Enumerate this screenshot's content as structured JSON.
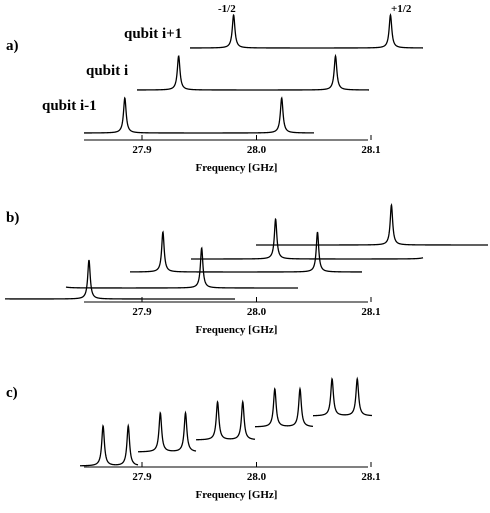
{
  "chart_data": [
    {
      "panel_label": "a)",
      "type": "line",
      "xlabel": "Frequency [GHz]",
      "xticks": [
        "27.9",
        "28.0",
        "28.1"
      ],
      "annotations": [
        "-1/2",
        "+1/2"
      ],
      "series": [
        {
          "name": "qubit i-1",
          "peaks_GHz": [
            27.885,
            28.022
          ]
        },
        {
          "name": "qubit i",
          "peaks_GHz": [
            27.932,
            28.069
          ]
        },
        {
          "name": "qubit i+1",
          "peaks_GHz": [
            27.98,
            28.117
          ]
        }
      ]
    },
    {
      "panel_label": "b)",
      "type": "line",
      "xlabel": "Frequency [GHz]",
      "xticks": [
        "27.9",
        "28.0",
        "28.1"
      ],
      "series": [
        {
          "peaks_GHz": [
            27.855,
            27.955
          ]
        },
        {
          "peaks_GHz": [
            27.881,
            28.008
          ]
        },
        {
          "peaks_GHz": [
            27.927,
            28.062
          ]
        },
        {
          "peaks_GHz": [
            27.98,
            28.116
          ]
        },
        {
          "peaks_GHz": [
            28.034,
            28.171
          ]
        }
      ]
    },
    {
      "panel_label": "c)",
      "type": "line",
      "xlabel": "Frequency [GHz]",
      "xticks": [
        "27.9",
        "28.0",
        "28.1"
      ],
      "series": [
        {
          "peaks_GHz": [
            27.866,
            27.888
          ]
        },
        {
          "peaks_GHz": [
            27.916,
            27.938
          ]
        },
        {
          "peaks_GHz": [
            27.966,
            27.988
          ]
        },
        {
          "peaks_GHz": [
            28.016,
            28.038
          ]
        },
        {
          "peaks_GHz": [
            28.066,
            28.088
          ]
        }
      ]
    }
  ]
}
